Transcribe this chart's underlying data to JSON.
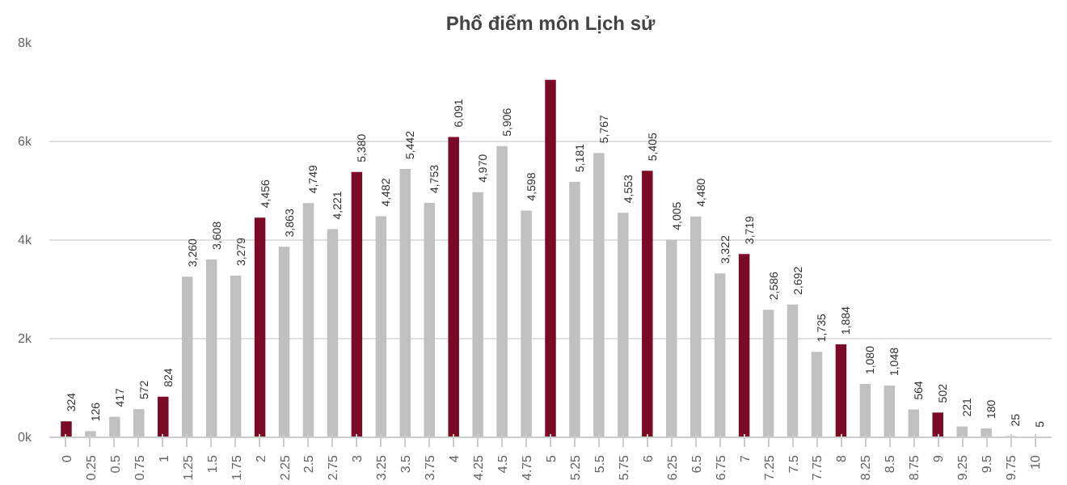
{
  "chart_data": {
    "type": "bar",
    "title": "Phổ điểm môn Lịch sử",
    "categories": [
      "0",
      "0.25",
      "0.5",
      "0.75",
      "1",
      "1.25",
      "1.5",
      "1.75",
      "2",
      "2.25",
      "2.5",
      "2.75",
      "3",
      "3.25",
      "3.5",
      "3.75",
      "4",
      "4.25",
      "4.5",
      "4.75",
      "5",
      "5.25",
      "5.5",
      "5.75",
      "6",
      "6.25",
      "6.5",
      "6.75",
      "7",
      "7.25",
      "7.5",
      "7.75",
      "8",
      "8.25",
      "8.5",
      "8.75",
      "9",
      "9.25",
      "9.5",
      "9.75",
      "10"
    ],
    "values": [
      324,
      126,
      417,
      572,
      824,
      3260,
      3608,
      3279,
      4456,
      3863,
      4749,
      4221,
      5380,
      4482,
      5442,
      4753,
      6091,
      4970,
      5906,
      4598,
      7250,
      5181,
      5767,
      4553,
      5405,
      4005,
      4480,
      3322,
      3719,
      2586,
      2692,
      1735,
      1884,
      1080,
      1048,
      564,
      502,
      221,
      180,
      25,
      5
    ],
    "value_labels": [
      "324",
      "126",
      "417",
      "572",
      "824",
      "3,260",
      "3,608",
      "3,279",
      "4,456",
      "3,863",
      "4,749",
      "4,221",
      "5,380",
      "4,482",
      "5,442",
      "4,753",
      "6,091",
      "4,970",
      "5,906",
      "4,598",
      null,
      "5,181",
      "5,767",
      "4,553",
      "5,405",
      "4,005",
      "4,480",
      "3,322",
      "3,719",
      "2,586",
      "2,692",
      "1,735",
      "1,884",
      "1,080",
      "1,048",
      "564",
      "502",
      "221",
      "180",
      "25",
      "5"
    ],
    "colors": [
      "#7b0a26",
      "#c0c0c0",
      "#c0c0c0",
      "#c0c0c0",
      "#7b0a26",
      "#c0c0c0",
      "#c0c0c0",
      "#c0c0c0",
      "#7b0a26",
      "#c0c0c0",
      "#c0c0c0",
      "#c0c0c0",
      "#7b0a26",
      "#c0c0c0",
      "#c0c0c0",
      "#c0c0c0",
      "#7b0a26",
      "#c0c0c0",
      "#c0c0c0",
      "#c0c0c0",
      "#7b0a26",
      "#c0c0c0",
      "#c0c0c0",
      "#c0c0c0",
      "#7b0a26",
      "#c0c0c0",
      "#c0c0c0",
      "#c0c0c0",
      "#7b0a26",
      "#c0c0c0",
      "#c0c0c0",
      "#c0c0c0",
      "#7b0a26",
      "#c0c0c0",
      "#c0c0c0",
      "#c0c0c0",
      "#7b0a26",
      "#c0c0c0",
      "#c0c0c0",
      "#c0c0c0",
      "#7b0a26"
    ],
    "ylim": [
      0,
      8000
    ],
    "yticks": [
      {
        "value": 0,
        "label": "0k"
      },
      {
        "value": 2000,
        "label": "2k"
      },
      {
        "value": 4000,
        "label": "4k"
      },
      {
        "value": 6000,
        "label": "6k"
      },
      {
        "value": 8000,
        "label": "8k"
      }
    ],
    "grid": "y"
  }
}
